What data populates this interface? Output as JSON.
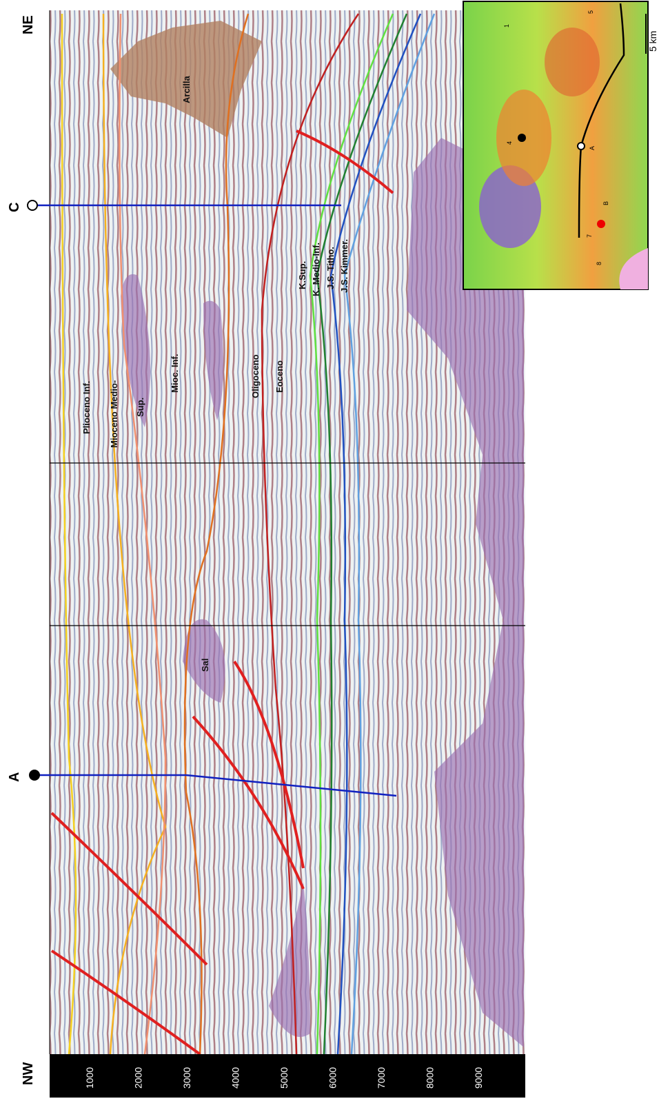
{
  "section": {
    "ends": [
      "NW",
      "NE"
    ],
    "wells": [
      "A",
      "C"
    ],
    "depth_ticks": [
      "1000",
      "2000",
      "3000",
      "4000",
      "5000",
      "6000",
      "7000",
      "8000",
      "9000"
    ],
    "labels": [
      "Plioceno Inf.",
      "Mioceno Medio-",
      "Sup.",
      "Mioc. Inf.",
      "Oligoceno",
      "Eoceno",
      "K.Sup.",
      "K. Medio-Inf.",
      "J.S. Titho.",
      "J.S. Kimmer.",
      "Arcilla",
      "Sal"
    ]
  },
  "map": {
    "wells": [
      "1",
      "4",
      "5",
      "7",
      "8"
    ],
    "points": [
      "A",
      "B"
    ],
    "scale": "5 km"
  }
}
